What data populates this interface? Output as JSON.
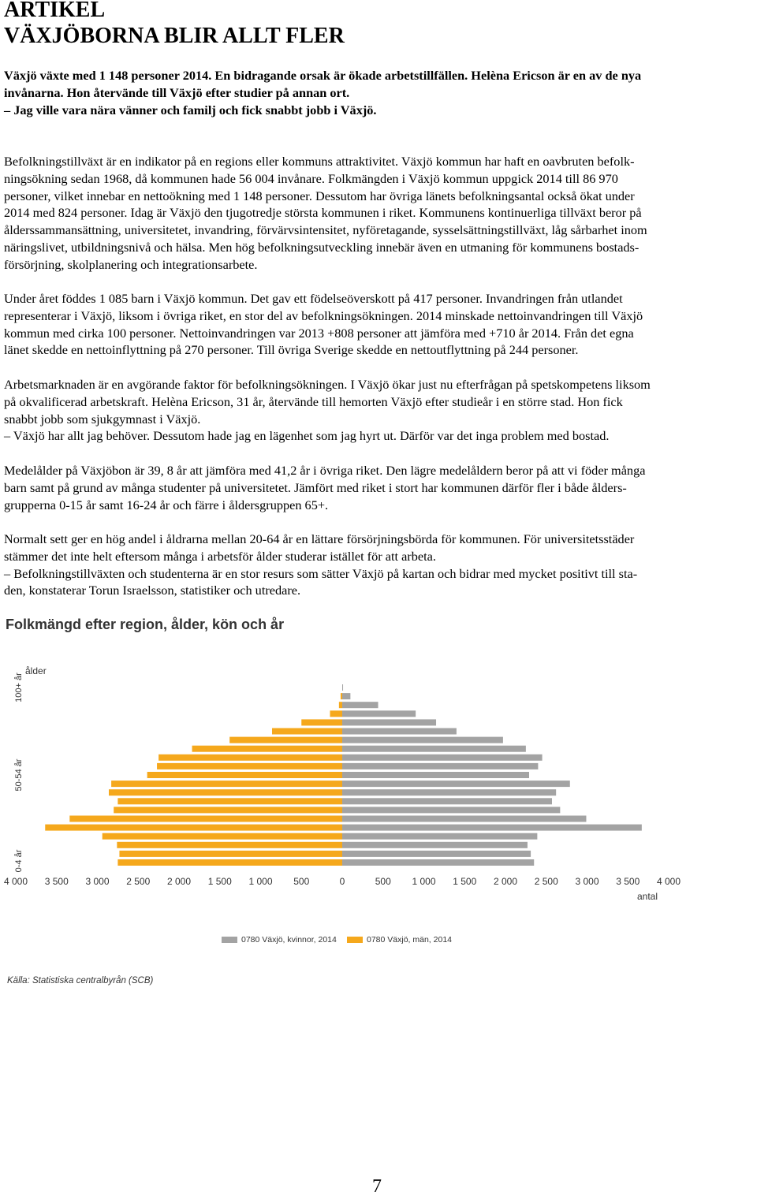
{
  "header": {
    "label": "ARTIKEL",
    "title": "VÄXJÖBORNA BLIR ALLT FLER"
  },
  "intro": [
    "Växjö växte med 1 148 personer 2014. En bidragande orsak är ökade arbetstillfällen. Helèna Ericson är en av de nya",
    "invånarna. Hon återvände till Växjö efter studier på annan ort.",
    "– Jag ville vara nära vänner och familj och fick snabbt jobb i Växjö."
  ],
  "paragraphs": [
    [
      "Befolkningstillväxt är en indikator på en regions eller kommuns attraktivitet. Växjö kommun har haft en oavbruten befolk-",
      "ningsökning sedan 1968, då kommunen hade 56 004 invånare. Folkmängden i Växjö kommun uppgick 2014 till 86 970",
      "personer, vilket innebar en nettoökning med 1 148 personer. Dessutom har övriga länets befolkningsantal också ökat under",
      "2014 med 824 personer. Idag är Växjö den tjugotredje största kommunen i riket. Kommunens kontinuerliga tillväxt beror på",
      "ålderssammansättning, universitetet, invandring, förvärvsintensitet, nyföretagande, sysselsättningstillväxt, låg sårbarhet inom",
      "näringslivet, utbildningsnivå och hälsa. Men hög befolkningsutveckling innebär även en utmaning för kommunens bostads-",
      "försörjning, skolplanering och integrationsarbete."
    ],
    [
      "Under året föddes 1 085 barn i Växjö kommun. Det gav ett födelseöverskott på 417 personer.  Invandringen från utlandet",
      "representerar i Växjö, liksom i övriga riket, en stor del av befolkningsökningen. 2014 minskade nettoinvandringen till Växjö",
      "kommun med cirka 100 personer. Nettoinvandringen var 2013 +808 personer att jämföra med +710 år 2014. Från det egna",
      "länet skedde en nettoinflyttning på 270 personer. Till övriga Sverige skedde en nettoutflyttning på 244 personer."
    ],
    [
      "Arbetsmarknaden är en avgörande faktor för befolkningsökningen. I Växjö ökar just nu efterfrågan på spetskompetens liksom",
      "på okvalificerad arbetskraft. Helèna Ericson, 31 år, återvände till hemorten Växjö efter studieår i en större stad. Hon fick",
      "snabbt jobb som sjukgymnast i Växjö.",
      "– Växjö har allt jag behöver. Dessutom hade jag en lägenhet som jag hyrt ut. Därför var det inga problem med bostad."
    ],
    [
      "Medelålder på Växjöbon är 39, 8 år att jämföra med 41,2 år i övriga riket. Den lägre medelåldern beror på att vi föder många",
      "barn samt på grund av många studenter på universitetet. Jämfört med riket i stort har kommunen därför fler i både ålders-",
      "grupperna 0-15 år samt 16-24 år och färre i åldersgruppen 65+."
    ],
    [
      "Normalt sett ger en hög andel i åldrarna mellan 20-64 år en lättare försörjningsbörda för kommunen. För universitetsstäder",
      "stämmer det inte helt eftersom många i arbetsför ålder studerar istället för att arbeta.",
      "– Befolkningstillväxten och studenterna är en stor resurs som sätter Växjö på kartan och bidrar med mycket positivt till sta-",
      "den, konstaterar Torun Israelsson, statistiker och utredare."
    ]
  ],
  "chart_data": {
    "type": "pyramid",
    "title": "Folkmängd efter region, ålder, kön och år",
    "y_label": "ålder",
    "x_label": "antal",
    "categories": [
      "0-4 år",
      null,
      null,
      null,
      null,
      null,
      null,
      null,
      null,
      null,
      "50-54 år",
      null,
      null,
      null,
      null,
      null,
      null,
      null,
      null,
      null,
      "100+ år"
    ],
    "series": [
      {
        "name": "0780 Växjö, kvinnor, 2014",
        "color": "#a3a3a3",
        "values": [
          2350,
          2310,
          2270,
          2390,
          3670,
          2990,
          2670,
          2570,
          2620,
          2790,
          2290,
          2400,
          2450,
          2250,
          1970,
          1400,
          1150,
          900,
          440,
          100,
          10
        ]
      },
      {
        "name": "0780 Växjö, män, 2014",
        "color": "#f5a81c",
        "values": [
          2750,
          2730,
          2760,
          2940,
          3640,
          3340,
          2800,
          2750,
          2860,
          2830,
          2390,
          2270,
          2250,
          1840,
          1380,
          860,
          500,
          150,
          40,
          20,
          0
        ]
      }
    ],
    "xlim": [
      -4000,
      4000
    ],
    "xticks": [
      {
        "value": -4000,
        "label": "4 000"
      },
      {
        "value": -3500,
        "label": "3 500"
      },
      {
        "value": -3000,
        "label": "3 000"
      },
      {
        "value": -2500,
        "label": "2 500"
      },
      {
        "value": -2000,
        "label": "2 000"
      },
      {
        "value": -1500,
        "label": "1 500"
      },
      {
        "value": -1000,
        "label": "1 000"
      },
      {
        "value": -500,
        "label": "500"
      },
      0,
      500,
      {
        "value": 1000,
        "label": "1 000"
      },
      {
        "value": 1500,
        "label": "1 500"
      },
      {
        "value": 2000,
        "label": "2 000"
      },
      {
        "value": 2500,
        "label": "2 500"
      },
      {
        "value": 3000,
        "label": "3 000"
      },
      {
        "value": 3500,
        "label": "3 500"
      },
      {
        "value": 4000,
        "label": "4 000"
      }
    ],
    "source": "Källa: Statistiska centralbyrån (SCB)"
  },
  "page_number": "7"
}
